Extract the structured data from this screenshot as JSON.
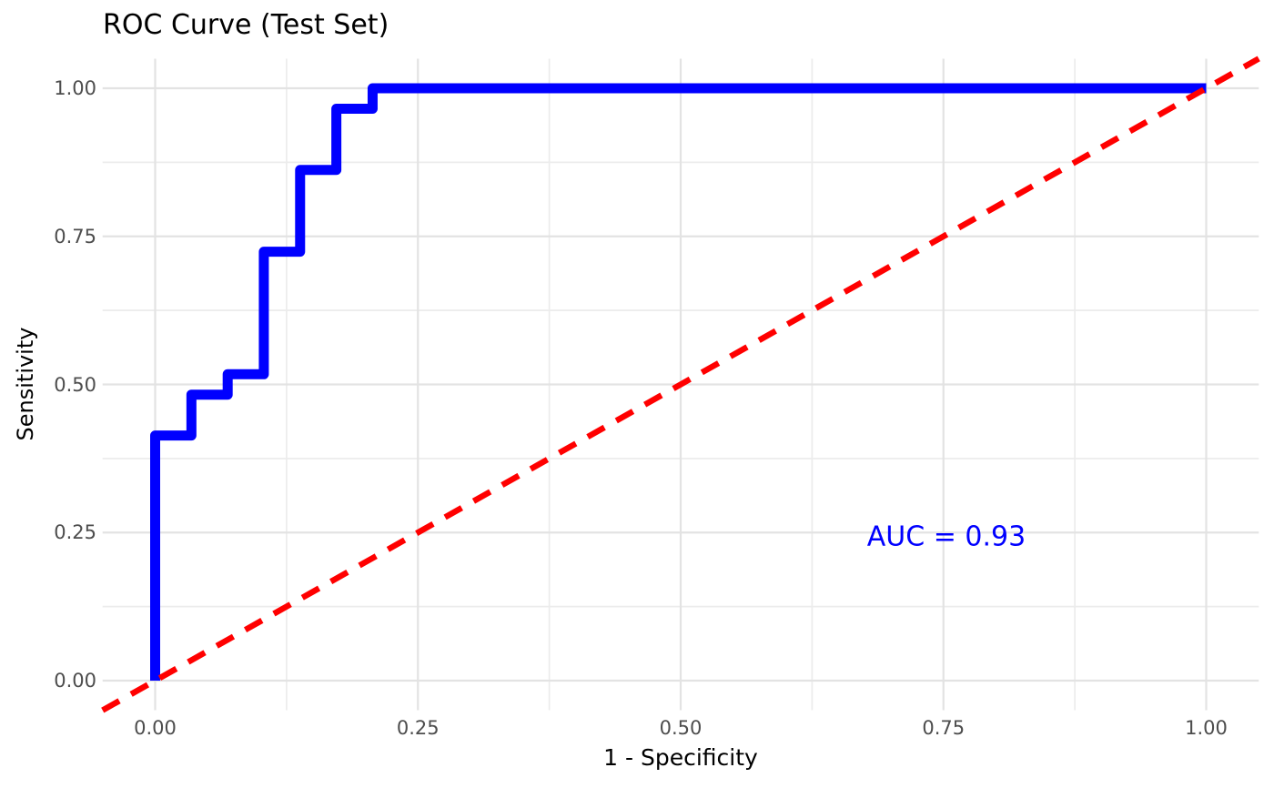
{
  "header": {
    "title": "ROC Curve (Test Set)"
  },
  "axes": {
    "x": {
      "title": "1 - Specificity",
      "tick_labels": [
        "0.00",
        "0.25",
        "0.50",
        "0.75",
        "1.00"
      ]
    },
    "y": {
      "title": "Sensitivity",
      "tick_labels": [
        "0.00",
        "0.25",
        "0.50",
        "0.75",
        "1.00"
      ]
    }
  },
  "annotation": {
    "text": "AUC = 0.93",
    "color": "#0000FF"
  },
  "colors": {
    "roc_curve": "#0000FF",
    "chance_line": "#FF0000",
    "grid_major": "#E3E3E3",
    "grid_minor": "#ECECEC",
    "tick_text": "#4D4D4D",
    "title_text": "#000000",
    "background": "#FFFFFF"
  },
  "chart_data": {
    "type": "line",
    "subtype": "roc-step-curve",
    "title": "ROC Curve (Test Set)",
    "xlabel": "1 - Specificity",
    "ylabel": "Sensitivity",
    "xlim": [
      -0.05,
      1.05
    ],
    "ylim": [
      -0.05,
      1.05
    ],
    "x_ticks": [
      0,
      0.25,
      0.5,
      0.75,
      1.0
    ],
    "y_ticks": [
      0,
      0.25,
      0.5,
      0.75,
      1.0
    ],
    "x_minor_ticks": [
      0.125,
      0.375,
      0.625,
      0.875
    ],
    "y_minor_ticks": [
      0.125,
      0.375,
      0.625,
      0.875
    ],
    "grid": true,
    "legend_position": "none",
    "auc": 0.93,
    "series": [
      {
        "name": "ROC curve",
        "style": "step",
        "color": "#0000FF",
        "points": [
          [
            0.0,
            0.0
          ],
          [
            0.0,
            0.4138
          ],
          [
            0.0345,
            0.4138
          ],
          [
            0.0345,
            0.4828
          ],
          [
            0.069,
            0.4828
          ],
          [
            0.069,
            0.5172
          ],
          [
            0.1034,
            0.5172
          ],
          [
            0.1034,
            0.7241
          ],
          [
            0.1379,
            0.7241
          ],
          [
            0.1379,
            0.8621
          ],
          [
            0.1724,
            0.8621
          ],
          [
            0.1724,
            0.9655
          ],
          [
            0.2069,
            0.9655
          ],
          [
            0.2069,
            1.0
          ],
          [
            1.0,
            1.0
          ]
        ]
      },
      {
        "name": "Chance diagonal",
        "style": "abline-dashed",
        "color": "#FF0000",
        "points": [
          [
            0.0,
            0.0
          ],
          [
            1.0,
            1.0
          ]
        ]
      }
    ],
    "annotations": [
      {
        "text": "AUC = 0.93",
        "x": 0.75,
        "y": 0.25,
        "color": "#0000FF"
      }
    ]
  }
}
